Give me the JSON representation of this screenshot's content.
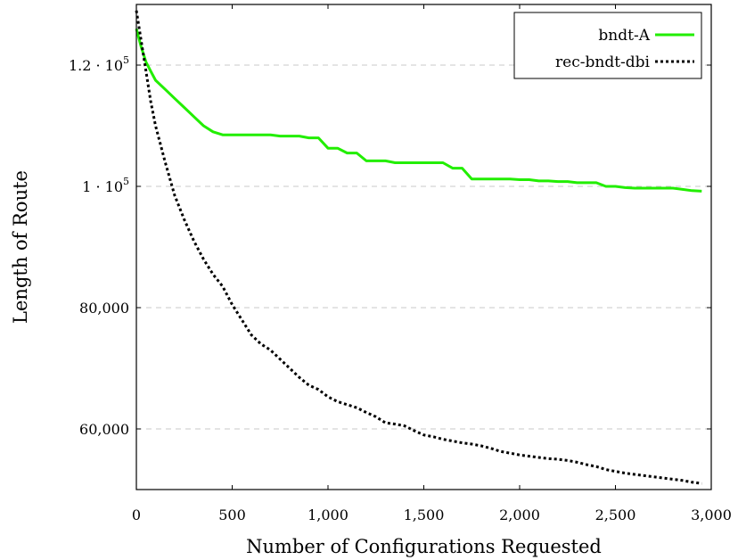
{
  "chart_data": {
    "type": "line",
    "title": "",
    "xlabel": "Number of Configurations Requested",
    "ylabel": "Length of Route",
    "xlim": [
      0,
      3000
    ],
    "ylim": [
      50000,
      130000
    ],
    "x_ticks": [
      {
        "value": 0,
        "label": "0"
      },
      {
        "value": 500,
        "label": "500"
      },
      {
        "value": 1000,
        "label": "1,000"
      },
      {
        "value": 1500,
        "label": "1,500"
      },
      {
        "value": 2000,
        "label": "2,000"
      },
      {
        "value": 2500,
        "label": "2,500"
      },
      {
        "value": 3000,
        "label": "3,000"
      }
    ],
    "y_ticks": [
      {
        "value": 60000,
        "label": "60,000"
      },
      {
        "value": 80000,
        "label": "80,000"
      },
      {
        "value": 100000,
        "label": "1 · 10",
        "exp": "5"
      },
      {
        "value": 120000,
        "label": "1.2 · 10",
        "exp": "5"
      }
    ],
    "grid": "horizontal dashed",
    "legend_position": "top-right",
    "series": [
      {
        "name": "bndt-A",
        "color": "#22ee00",
        "style": "solid",
        "x": [
          0,
          25,
          50,
          75,
          100,
          150,
          200,
          250,
          300,
          350,
          400,
          450,
          500,
          550,
          600,
          650,
          700,
          750,
          800,
          850,
          900,
          950,
          1000,
          1050,
          1100,
          1150,
          1200,
          1250,
          1300,
          1350,
          1400,
          1450,
          1500,
          1550,
          1600,
          1650,
          1700,
          1750,
          1800,
          1850,
          1900,
          1950,
          2000,
          2050,
          2100,
          2150,
          2200,
          2250,
          2300,
          2350,
          2400,
          2450,
          2500,
          2550,
          2600,
          2650,
          2700,
          2750,
          2800,
          2850,
          2900,
          2950
        ],
        "y": [
          126000,
          123000,
          120500,
          119000,
          117500,
          116000,
          114500,
          113000,
          111500,
          110000,
          109000,
          108500,
          108500,
          108500,
          108500,
          108500,
          108500,
          108300,
          108300,
          108300,
          108000,
          108000,
          106300,
          106300,
          105500,
          105500,
          104200,
          104200,
          104200,
          103900,
          103900,
          103900,
          103900,
          103900,
          103900,
          103000,
          103000,
          101200,
          101200,
          101200,
          101200,
          101200,
          101100,
          101100,
          100900,
          100900,
          100800,
          100800,
          100600,
          100600,
          100600,
          100000,
          100000,
          99800,
          99700,
          99700,
          99700,
          99700,
          99700,
          99500,
          99300,
          99200
        ]
      },
      {
        "name": "rec-bndt-dbi",
        "color": "#000000",
        "style": "dotted",
        "x": [
          0,
          25,
          50,
          75,
          100,
          150,
          200,
          250,
          300,
          350,
          400,
          450,
          500,
          550,
          600,
          650,
          700,
          750,
          800,
          850,
          900,
          950,
          1000,
          1050,
          1100,
          1150,
          1200,
          1250,
          1300,
          1350,
          1400,
          1450,
          1500,
          1550,
          1600,
          1650,
          1700,
          1750,
          1800,
          1850,
          1900,
          1950,
          2000,
          2050,
          2100,
          2150,
          2200,
          2250,
          2300,
          2350,
          2400,
          2450,
          2500,
          2550,
          2600,
          2650,
          2700,
          2750,
          2800,
          2850,
          2900,
          2950
        ],
        "y": [
          129000,
          124000,
          119000,
          114000,
          110000,
          104000,
          98500,
          94500,
          91000,
          88000,
          85500,
          83500,
          80500,
          78000,
          75500,
          74000,
          73000,
          71500,
          70000,
          68500,
          67200,
          66500,
          65300,
          64500,
          64000,
          63500,
          62700,
          62000,
          61000,
          60800,
          60500,
          59700,
          59000,
          58700,
          58300,
          58000,
          57700,
          57500,
          57200,
          56800,
          56300,
          56000,
          55700,
          55500,
          55300,
          55100,
          55000,
          54800,
          54500,
          54100,
          53800,
          53300,
          53000,
          52700,
          52500,
          52300,
          52100,
          51900,
          51700,
          51500,
          51200,
          51000
        ]
      }
    ]
  }
}
